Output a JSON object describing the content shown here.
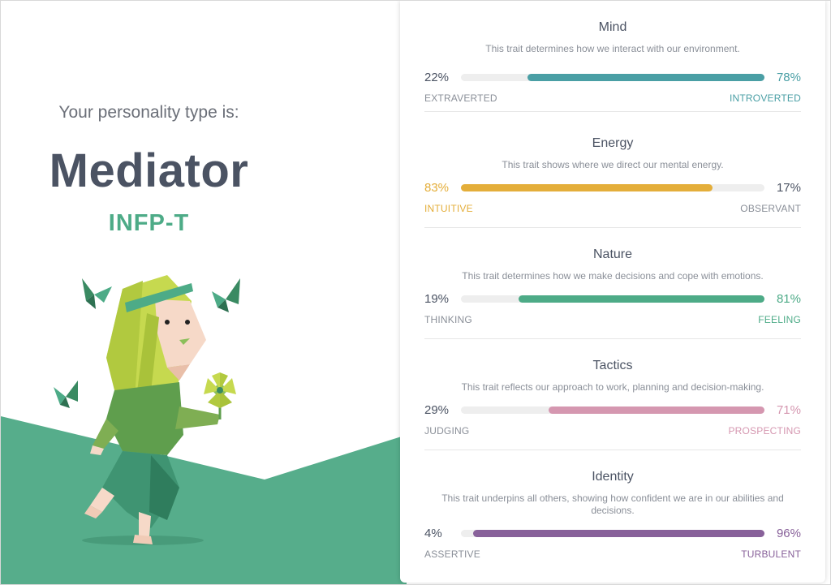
{
  "hero": {
    "intro": "Your personality type is:",
    "type_name": "Mediator",
    "type_code": "INFP-T"
  },
  "colors": {
    "accent_green": "#4dab87",
    "hill_green": "#56ad8b",
    "mind": "#4a9fa5",
    "energy": "#e4ae3a",
    "nature": "#4dab87",
    "tactics": "#d597b0",
    "identity": "#88619a",
    "text_dark": "#4b5363",
    "text_muted": "#8a8f98"
  },
  "traits": [
    {
      "title": "Mind",
      "description": "This trait determines how we interact with our environment.",
      "left_pct": "22%",
      "right_pct": "78%",
      "left_label": "EXTRAVERTED",
      "right_label": "INTROVERTED",
      "dominant": "right",
      "value": 78,
      "color": "#4a9fa5"
    },
    {
      "title": "Energy",
      "description": "This trait shows where we direct our mental energy.",
      "left_pct": "83%",
      "right_pct": "17%",
      "left_label": "INTUITIVE",
      "right_label": "OBSERVANT",
      "dominant": "left",
      "value": 83,
      "color": "#e4ae3a"
    },
    {
      "title": "Nature",
      "description": "This trait determines how we make decisions and cope with emotions.",
      "left_pct": "19%",
      "right_pct": "81%",
      "left_label": "THINKING",
      "right_label": "FEELING",
      "dominant": "right",
      "value": 81,
      "color": "#4dab87"
    },
    {
      "title": "Tactics",
      "description": "This trait reflects our approach to work, planning and decision-making.",
      "left_pct": "29%",
      "right_pct": "71%",
      "left_label": "JUDGING",
      "right_label": "PROSPECTING",
      "dominant": "right",
      "value": 71,
      "color": "#d597b0"
    },
    {
      "title": "Identity",
      "description": "This trait underpins all others, showing how confident we are in our abilities and decisions.",
      "left_pct": "4%",
      "right_pct": "96%",
      "left_label": "ASSERTIVE",
      "right_label": "TURBULENT",
      "dominant": "right",
      "value": 96,
      "color": "#88619a"
    }
  ]
}
